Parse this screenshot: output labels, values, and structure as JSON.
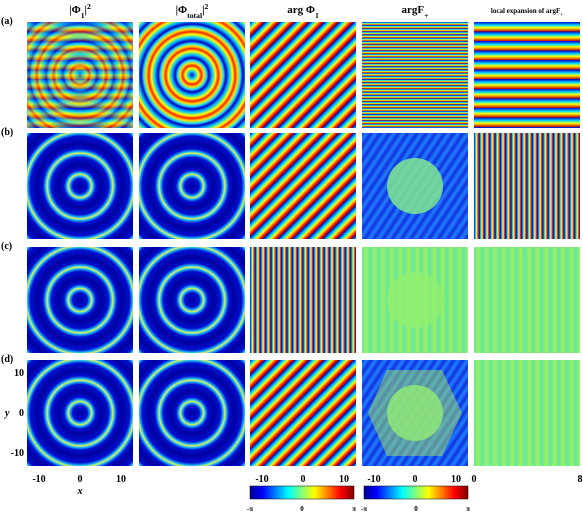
{
  "columns": [
    {
      "base": "|Φ",
      "sub": "1",
      "tail": "|",
      "sup": "2"
    },
    {
      "base": "|Φ",
      "sub": "total",
      "tail": "|",
      "sup": "2"
    },
    {
      "base": "arg Φ",
      "sub": "1"
    },
    {
      "base": "argF",
      "sub": "+"
    },
    {
      "base": "local expansion of argF",
      "sub": "+"
    }
  ],
  "rows": [
    "(a)",
    "(b)",
    "(c)",
    "(d)"
  ],
  "x_axis": {
    "label": "x",
    "ticks": [
      "-10",
      "0",
      "10"
    ]
  },
  "y_axis": {
    "label": "y",
    "ticks": [
      "10",
      "0",
      "-10"
    ]
  },
  "col3_ticks": [
    "-10",
    "0",
    "10"
  ],
  "col4_ticks": [
    "-10",
    "0",
    "10"
  ],
  "col5_ticks": [
    "0",
    "8"
  ],
  "colorbars": [
    {
      "ticks": [
        "-π",
        "0",
        "π"
      ]
    },
    {
      "ticks": [
        "-π",
        "0",
        "π"
      ]
    }
  ]
}
